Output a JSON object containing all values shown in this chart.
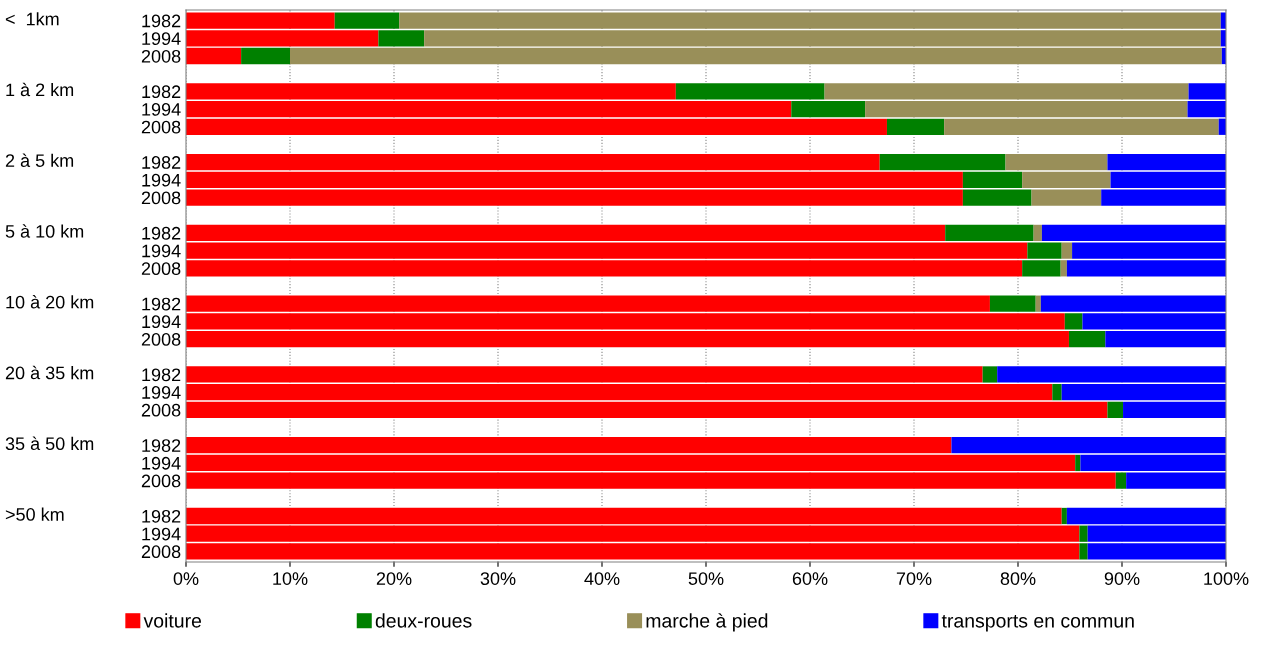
{
  "chart_data": {
    "type": "bar",
    "orientation": "horizontal",
    "stacked": true,
    "categories": [
      "1982",
      "1994",
      "2008",
      "1982",
      "1994",
      "2008",
      "1982",
      "1994",
      "2008",
      "1982",
      "1994",
      "2008",
      "1982",
      "1994",
      "2008",
      "1982",
      "1994",
      "2008",
      "1982",
      "1994",
      "2008",
      "1982",
      "1994",
      "2008"
    ],
    "annotations": [
      "<  1km",
      "1 à 2 km",
      "2 à 5 km",
      "5 à 10 km",
      "10 à 20 km",
      "20 à 35 km",
      "35 à 50 km",
      ">50 km"
    ],
    "series": [
      {
        "name": "voiture",
        "color": "#ff0000",
        "values": [
          14.3,
          18.5,
          5.3,
          47.1,
          58.2,
          67.4,
          66.7,
          74.7,
          74.7,
          73.0,
          80.9,
          80.4,
          77.3,
          84.5,
          84.9,
          76.6,
          83.3,
          88.6,
          73.6,
          85.5,
          89.4,
          84.2,
          85.9,
          85.9
        ]
      },
      {
        "name": "deux-roues",
        "color": "#008000",
        "values": [
          6.2,
          4.4,
          4.7,
          14.3,
          7.1,
          5.5,
          12.1,
          5.7,
          6.6,
          8.5,
          3.3,
          3.7,
          4.4,
          1.7,
          3.5,
          1.4,
          0.9,
          1.5,
          0,
          0.5,
          1.0,
          0.5,
          0.8,
          0.8
        ]
      },
      {
        "name": "marche à pied",
        "color": "#998f59",
        "values": [
          79.0,
          76.6,
          89.6,
          35.0,
          31.0,
          26.4,
          9.8,
          8.5,
          6.7,
          0.8,
          1.0,
          0.6,
          0.5,
          0,
          0,
          0,
          0,
          0,
          0,
          0,
          0,
          0,
          0,
          0
        ]
      },
      {
        "name": "transports en commun",
        "color": "#0000ff",
        "values": [
          0.5,
          0.5,
          0.4,
          3.6,
          3.7,
          0.7,
          11.4,
          11.1,
          12.0,
          17.7,
          14.8,
          15.3,
          17.8,
          13.8,
          11.6,
          22.0,
          15.8,
          9.9,
          26.4,
          14.0,
          9.6,
          15.3,
          13.3,
          13.3
        ]
      }
    ],
    "xlim": [
      0,
      100
    ],
    "xticks": [
      {
        "value": 0,
        "label": "0%"
      },
      {
        "value": 10,
        "label": "10%"
      },
      {
        "value": 20,
        "label": "20%"
      },
      {
        "value": 30,
        "label": "30%"
      },
      {
        "value": 40,
        "label": "40%"
      },
      {
        "value": 50,
        "label": "50%"
      },
      {
        "value": 60,
        "label": "60%"
      },
      {
        "value": 70,
        "label": "70%"
      },
      {
        "value": 80,
        "label": "80%"
      },
      {
        "value": 90,
        "label": "90%"
      },
      {
        "value": 100,
        "label": "100%"
      }
    ],
    "grid": "x",
    "legend": "bottom"
  }
}
